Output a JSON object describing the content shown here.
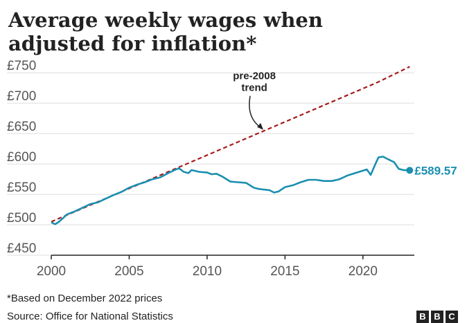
{
  "title": "Average weekly wages when adjusted for inflation*",
  "note": "*Based on December 2022 prices",
  "source": "Source: Office for National Statistics",
  "logo": [
    "B",
    "B",
    "C"
  ],
  "colors": {
    "series": "#1a8fb0",
    "trend": "#a51b1b",
    "axis": "#222222",
    "grid": "#dddddd"
  },
  "chart_data": {
    "type": "line",
    "title": "Average weekly wages when adjusted for inflation*",
    "xlabel": "",
    "ylabel": "",
    "xlim": [
      2000,
      2023.3
    ],
    "ylim": [
      450,
      765
    ],
    "y_ticks": [
      450,
      500,
      550,
      600,
      650,
      700,
      750
    ],
    "y_tick_labels": [
      "£450",
      "£500",
      "£550",
      "£600",
      "£650",
      "£700",
      "£750"
    ],
    "x_ticks": [
      2000,
      2005,
      2010,
      2015,
      2020
    ],
    "x_tick_labels": [
      "2000",
      "2005",
      "2010",
      "2015",
      "2020"
    ],
    "grid": "horizontal",
    "series": [
      {
        "name": "",
        "style": "solid",
        "x": [
          2000.0,
          2000.25,
          2000.5,
          2000.75,
          2001.0,
          2001.5,
          2002.0,
          2002.5,
          2003.0,
          2003.5,
          2004.0,
          2004.5,
          2005.0,
          2005.5,
          2006.0,
          2006.5,
          2007.0,
          2007.5,
          2008.0,
          2008.2,
          2008.5,
          2008.8,
          2009.0,
          2009.5,
          2010.0,
          2010.3,
          2010.6,
          2011.0,
          2011.5,
          2012.0,
          2012.5,
          2013.0,
          2013.3,
          2013.6,
          2014.0,
          2014.3,
          2014.6,
          2015.0,
          2015.5,
          2016.0,
          2016.5,
          2017.0,
          2017.5,
          2018.0,
          2018.5,
          2019.0,
          2019.5,
          2020.0,
          2020.25,
          2020.5,
          2020.8,
          2021.0,
          2021.3,
          2021.6,
          2022.0,
          2022.3,
          2022.6,
          2023.0
        ],
        "y": [
          504,
          501,
          505,
          511,
          517,
          522,
          528,
          534,
          537,
          543,
          549,
          554,
          561,
          566,
          570,
          575,
          578,
          585,
          591,
          593,
          587,
          585,
          590,
          587,
          586,
          583,
          584,
          579,
          571,
          570,
          569,
          561,
          559,
          558,
          557,
          553,
          555,
          562,
          565,
          570,
          574,
          574,
          572,
          572,
          575,
          581,
          585,
          589,
          591,
          582,
          600,
          611,
          612,
          608,
          603,
          592,
          590,
          589.57
        ]
      },
      {
        "name": "pre-2008 trend",
        "style": "dashed",
        "x": [
          2000.0,
          2021.0,
          2023.0
        ],
        "y": [
          505,
          735,
          760
        ]
      }
    ],
    "annotations": [
      {
        "text": [
          "pre-2008",
          "trend"
        ],
        "series": 1,
        "point_x": 2013.7
      },
      {
        "text": "£589.57",
        "series": 0,
        "point_x": 2023.0
      }
    ]
  }
}
